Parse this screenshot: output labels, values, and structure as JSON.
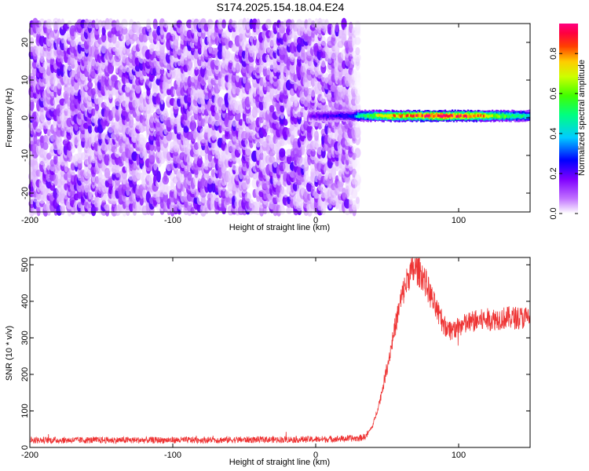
{
  "title": "S174.2025.154.18.04.E24",
  "chart_data": [
    {
      "type": "heatmap",
      "title": "S174.2025.154.18.04.E24",
      "xlabel": "Height of straight line (km)",
      "ylabel": "Frequency (Hz)",
      "xlim": [
        -200,
        150
      ],
      "ylim": [
        -25,
        25
      ],
      "x_ticks": [
        "-200",
        "-100",
        "0",
        "100"
      ],
      "y_ticks": [
        "-20",
        "-10",
        "0",
        "10",
        "20"
      ],
      "colorbar": {
        "label": "Normalized spectral amplitude",
        "range": [
          0.0,
          0.95
        ],
        "ticks": [
          "0.0",
          "0.2",
          "0.4",
          "0.6",
          "0.8"
        ],
        "colors": [
          "#ffffff",
          "#a020f0",
          "#0000ff",
          "#00ffff",
          "#00ff00",
          "#ffff00",
          "#ff8000",
          "#ff0000",
          "#ff00ff"
        ]
      },
      "noise_region_x": [
        -200,
        30
      ],
      "noise_amplitude": [
        0.0,
        0.15
      ],
      "signal_band": {
        "x": [
          -5,
          150
        ],
        "frequency_center": 0.5,
        "frequency_halfwidth": 1.5,
        "amplitude_profile": [
          {
            "x": -5,
            "amp": 0.15
          },
          {
            "x": 0,
            "amp": 0.2
          },
          {
            "x": 25,
            "amp": 0.25
          },
          {
            "x": 30,
            "amp": 0.45
          },
          {
            "x": 45,
            "amp": 0.7
          },
          {
            "x": 60,
            "amp": 0.8
          },
          {
            "x": 80,
            "amp": 0.9
          },
          {
            "x": 110,
            "amp": 0.85
          },
          {
            "x": 140,
            "amp": 0.5
          },
          {
            "x": 150,
            "amp": 0.45
          }
        ]
      }
    },
    {
      "type": "line",
      "xlabel": "Height of straight line (km)",
      "ylabel": "SNR (10 * v/v)",
      "xlim": [
        -200,
        150
      ],
      "ylim": [
        0,
        520
      ],
      "x_ticks": [
        "-200",
        "-100",
        "0",
        "100"
      ],
      "y_ticks": [
        "0",
        "100",
        "200",
        "300",
        "400",
        "500"
      ],
      "color": "#ee3333",
      "envelope": [
        {
          "x": -200,
          "y": 20
        },
        {
          "x": -100,
          "y": 20
        },
        {
          "x": 0,
          "y": 22
        },
        {
          "x": 30,
          "y": 25
        },
        {
          "x": 35,
          "y": 30
        },
        {
          "x": 40,
          "y": 60
        },
        {
          "x": 45,
          "y": 130
        },
        {
          "x": 50,
          "y": 220
        },
        {
          "x": 55,
          "y": 320
        },
        {
          "x": 60,
          "y": 410
        },
        {
          "x": 65,
          "y": 470
        },
        {
          "x": 70,
          "y": 490
        },
        {
          "x": 75,
          "y": 470
        },
        {
          "x": 80,
          "y": 420
        },
        {
          "x": 85,
          "y": 370
        },
        {
          "x": 90,
          "y": 335
        },
        {
          "x": 95,
          "y": 320
        },
        {
          "x": 100,
          "y": 330
        },
        {
          "x": 110,
          "y": 345
        },
        {
          "x": 120,
          "y": 350
        },
        {
          "x": 135,
          "y": 355
        },
        {
          "x": 150,
          "y": 355
        }
      ]
    }
  ]
}
